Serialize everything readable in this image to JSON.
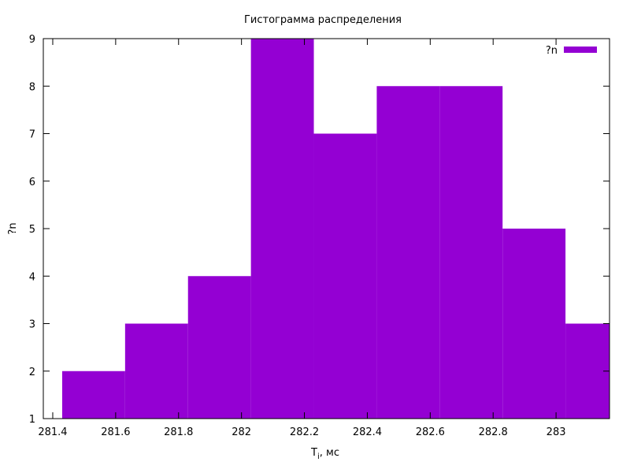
{
  "chart_data": {
    "type": "bar",
    "title": "Гистограмма распределения",
    "xlabel": "T",
    "xlabel_sub": "i",
    "xlabel_suffix": ", мс",
    "ylabel": "?n",
    "legend": {
      "label": "?n",
      "position": "top-right"
    },
    "bar_color": "#9400d3",
    "xlim": [
      281.37,
      283.17
    ],
    "ylim": [
      1,
      9
    ],
    "xticks": [
      281.4,
      281.6,
      281.8,
      282,
      282.2,
      282.4,
      282.6,
      282.8,
      283
    ],
    "yticks": [
      1,
      2,
      3,
      4,
      5,
      6,
      7,
      8,
      9
    ],
    "grid": false,
    "bins": [
      {
        "x0": 281.43,
        "x1": 281.63,
        "value": 2
      },
      {
        "x0": 281.63,
        "x1": 281.83,
        "value": 3
      },
      {
        "x0": 281.83,
        "x1": 282.03,
        "value": 4
      },
      {
        "x0": 282.03,
        "x1": 282.23,
        "value": 9
      },
      {
        "x0": 282.23,
        "x1": 282.43,
        "value": 7
      },
      {
        "x0": 282.43,
        "x1": 282.63,
        "value": 8
      },
      {
        "x0": 282.63,
        "x1": 282.83,
        "value": 8
      },
      {
        "x0": 282.83,
        "x1": 283.03,
        "value": 5
      },
      {
        "x0": 283.03,
        "x1": 283.23,
        "value": 3
      }
    ]
  }
}
